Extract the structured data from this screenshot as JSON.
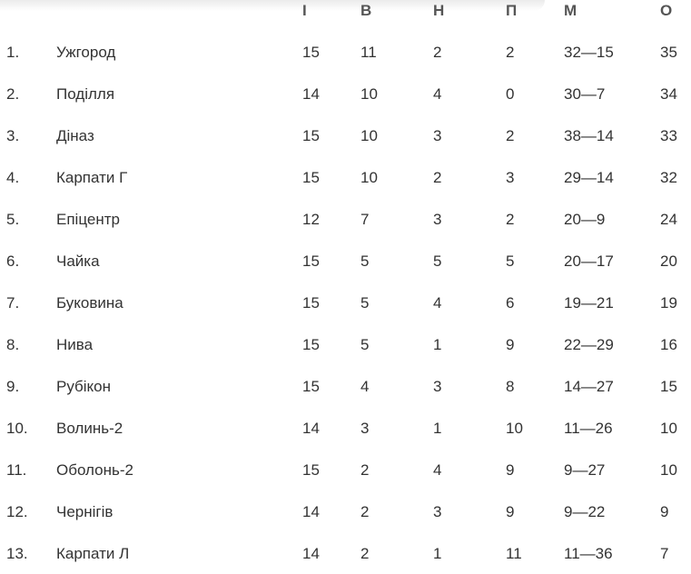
{
  "headers": [
    "І",
    "В",
    "Н",
    "П",
    "М",
    "О"
  ],
  "rows": [
    [
      "1.",
      "Ужгород",
      "15",
      "11",
      "2",
      "2",
      "32—15",
      "35"
    ],
    [
      "2.",
      "Поділля",
      "14",
      "10",
      "4",
      "0",
      "30—7",
      "34"
    ],
    [
      "3.",
      "Діназ",
      "15",
      "10",
      "3",
      "2",
      "38—14",
      "33"
    ],
    [
      "4.",
      "Карпати Г",
      "15",
      "10",
      "2",
      "3",
      "29—14",
      "32"
    ],
    [
      "5.",
      "Епіцентр",
      "12",
      "7",
      "3",
      "2",
      "20—9",
      "24"
    ],
    [
      "6.",
      "Чайка",
      "15",
      "5",
      "5",
      "5",
      "20—17",
      "20"
    ],
    [
      "7.",
      "Буковина",
      "15",
      "5",
      "4",
      "6",
      "19—21",
      "19"
    ],
    [
      "8.",
      "Нива",
      "15",
      "5",
      "1",
      "9",
      "22—29",
      "16"
    ],
    [
      "9.",
      "Рубікон",
      "15",
      "4",
      "3",
      "8",
      "14—27",
      "15"
    ],
    [
      "10.",
      "Волинь-2",
      "14",
      "3",
      "1",
      "10",
      "11—26",
      "10"
    ],
    [
      "11.",
      "Оболонь-2",
      "15",
      "2",
      "4",
      "9",
      "9—27",
      "10"
    ],
    [
      "12.",
      "Чернігів",
      "14",
      "2",
      "3",
      "9",
      "9—22",
      "9"
    ],
    [
      "13.",
      "Карпати Л",
      "14",
      "2",
      "1",
      "11",
      "11—36",
      "7"
    ]
  ]
}
